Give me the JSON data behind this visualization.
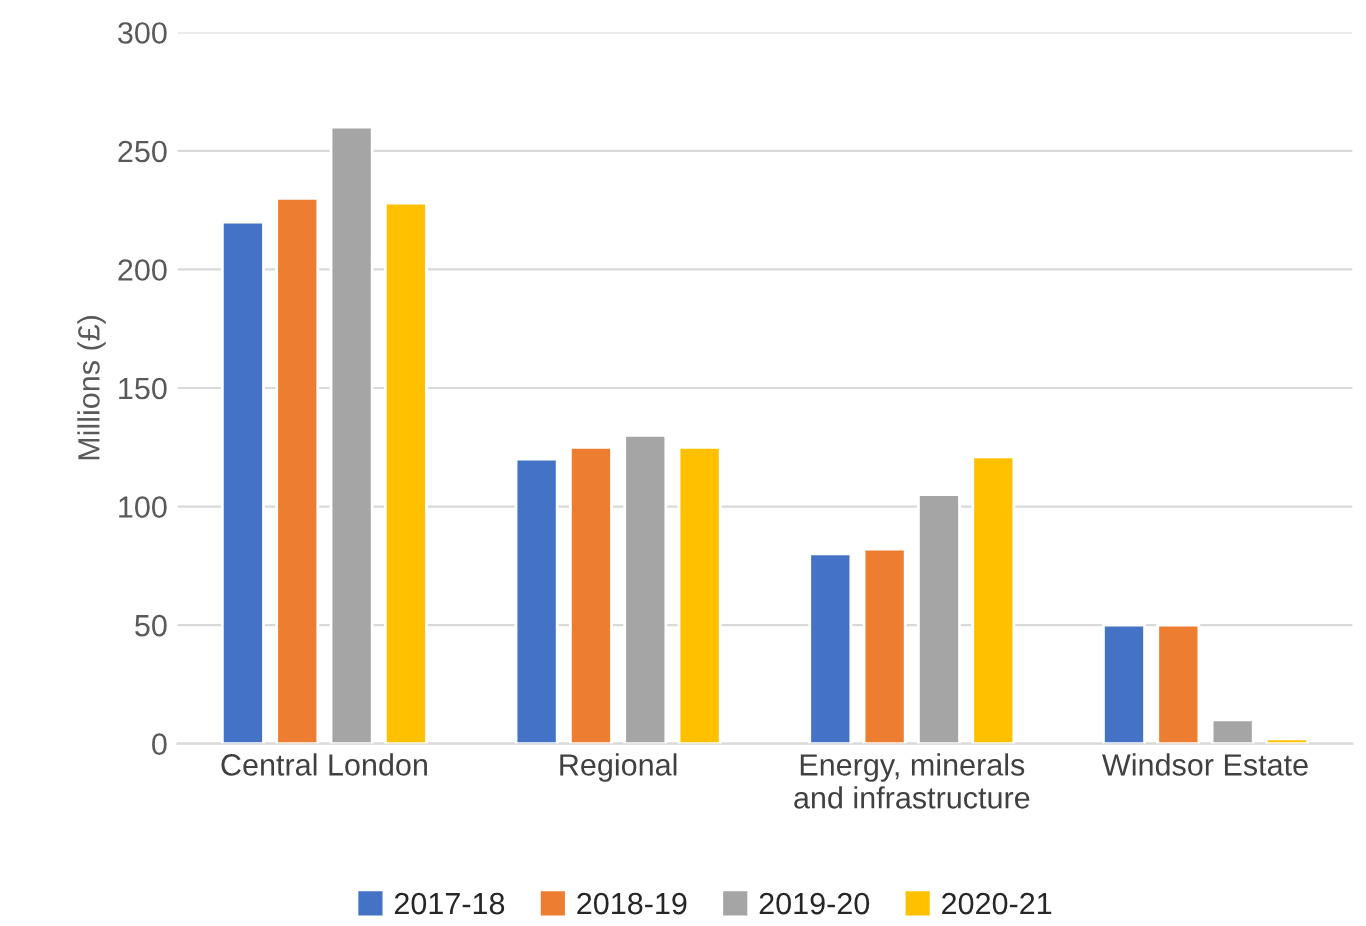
{
  "chart_data": {
    "type": "bar",
    "ylabel": "Millions (£)",
    "categories": [
      "Central London",
      "Regional",
      "Energy, minerals\nand infrastructure",
      "Windsor Estate"
    ],
    "series": [
      {
        "name": "2017-18",
        "color": "#4472c4",
        "values": [
          220,
          120,
          80,
          50
        ]
      },
      {
        "name": "2018-19",
        "color": "#ed7d31",
        "values": [
          230,
          125,
          82,
          50
        ]
      },
      {
        "name": "2019-20",
        "color": "#a5a5a5",
        "values": [
          260,
          130,
          105,
          10
        ]
      },
      {
        "name": "2020-21",
        "color": "#ffc000",
        "values": [
          228,
          125,
          121,
          2
        ]
      }
    ],
    "ylim": [
      0,
      300
    ],
    "yticks": [
      0,
      50,
      100,
      150,
      200,
      250,
      300
    ],
    "grid": "y",
    "legend": "bottom"
  }
}
